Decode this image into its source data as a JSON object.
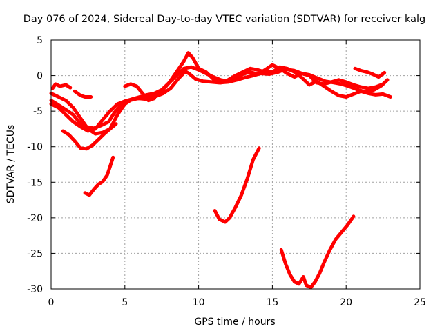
{
  "chart_data": {
    "type": "line",
    "title": "Day 076 of 2024, Sidereal Day-to-day VTEC variation (SDTVAR) for receiver kalg",
    "xlabel": "GPS time / hours",
    "ylabel": "SDTVAR / TECUs",
    "xlim": [
      0,
      25
    ],
    "ylim": [
      -30,
      5
    ],
    "xticks": [
      0,
      5,
      10,
      15,
      20,
      25
    ],
    "yticks": [
      -30,
      -25,
      -20,
      -15,
      -10,
      -5,
      0,
      5
    ],
    "grid": true,
    "series_color": "#ff0000",
    "series": [
      {
        "name": "track-1",
        "x": [
          0.0,
          0.4,
          1.0,
          1.5,
          2.0,
          2.4,
          2.9,
          3.4,
          3.9,
          4.3,
          4.8,
          5.3,
          5.9,
          6.4,
          7.0,
          7.6,
          8.1,
          8.6,
          9.1,
          9.4,
          9.8,
          10.3,
          10.9,
          11.4,
          12.0,
          12.6,
          13.1,
          13.7,
          14.2,
          14.8,
          15.4,
          15.9,
          16.5,
          17.0,
          17.5,
          18.1,
          18.6,
          19.2,
          19.7,
          20.3,
          20.8,
          21.3,
          21.9,
          22.4,
          22.8
        ],
        "y": [
          -3.5,
          -4.0,
          -4.8,
          -5.5,
          -6.8,
          -7.2,
          -7.4,
          -7.0,
          -6.5,
          -5.2,
          -4.0,
          -3.5,
          -3.2,
          -3.3,
          -3.0,
          -2.5,
          -1.8,
          -0.5,
          0.6,
          0.2,
          -0.5,
          -0.8,
          -0.9,
          -1.0,
          -0.9,
          -0.6,
          -0.3,
          0.0,
          0.3,
          0.2,
          0.5,
          0.9,
          0.7,
          0.3,
          0.1,
          -0.4,
          -0.8,
          -1.0,
          -1.2,
          -1.6,
          -2.0,
          -2.3,
          -2.0,
          -1.4,
          -0.6
        ]
      },
      {
        "name": "track-2",
        "x": [
          0.0,
          0.5,
          1.0,
          1.5,
          2.0,
          2.5,
          3.0,
          3.5,
          4.0,
          4.5,
          5.0,
          5.5,
          6.0,
          6.5,
          7.0,
          7.5,
          8.0,
          8.5,
          9.0,
          9.3,
          9.6,
          10.0,
          10.5,
          11.0,
          11.5,
          12.0,
          12.5,
          13.0,
          13.5,
          14.0,
          14.5,
          15.0,
          15.5,
          16.0,
          16.5,
          17.0,
          17.5,
          18.0,
          18.5,
          19.0,
          19.5,
          20.0,
          20.5,
          21.0,
          21.5,
          22.0,
          22.5,
          23.0
        ],
        "y": [
          -2.5,
          -3.0,
          -3.5,
          -4.5,
          -6.0,
          -7.5,
          -8.2,
          -8.0,
          -7.5,
          -5.5,
          -4.0,
          -3.3,
          -3.0,
          -2.7,
          -2.5,
          -2.0,
          -1.0,
          0.5,
          2.0,
          3.2,
          2.5,
          1.0,
          0.5,
          -0.5,
          -1.0,
          -0.6,
          0.0,
          0.5,
          1.0,
          0.8,
          0.5,
          0.5,
          1.2,
          1.0,
          0.5,
          -0.3,
          -1.3,
          -0.8,
          -1.5,
          -2.2,
          -2.8,
          -3.0,
          -2.6,
          -2.2,
          -2.5,
          -2.7,
          -2.6,
          -3.0
        ]
      },
      {
        "name": "track-3",
        "x": [
          0.0,
          0.5,
          1.0,
          1.5,
          2.0,
          2.5,
          3.0,
          3.5,
          4.0,
          4.5,
          5.0,
          5.5,
          6.0,
          6.5,
          7.0,
          7.5,
          8.0,
          8.5,
          9.0,
          9.5,
          10.0,
          10.5,
          11.0,
          11.5,
          12.0,
          12.5,
          13.0,
          13.5,
          14.0,
          14.5,
          15.0,
          15.5,
          16.0,
          16.5,
          17.0,
          17.5,
          18.0,
          18.5,
          19.0,
          19.5,
          20.0,
          20.5,
          21.0,
          21.5,
          22.0,
          22.5
        ],
        "y": [
          -4.0,
          -4.5,
          -5.5,
          -6.5,
          -7.2,
          -7.8,
          -7.5,
          -6.2,
          -5.0,
          -4.0,
          -3.6,
          -3.3,
          -3.2,
          -3.0,
          -2.8,
          -2.2,
          -1.0,
          0.0,
          1.0,
          1.2,
          0.8,
          0.3,
          -0.2,
          -0.6,
          -0.8,
          -0.5,
          0.2,
          0.5,
          0.2,
          0.8,
          1.5,
          1.0,
          0.3,
          -0.2,
          0.3,
          0.0,
          -1.0,
          -1.2,
          -0.9,
          -0.6,
          -0.9,
          -1.3,
          -1.6,
          -1.8,
          -1.6,
          -1.2
        ]
      },
      {
        "name": "track-4",
        "x": [
          0.1,
          0.3,
          0.6,
          1.0,
          1.3
        ],
        "y": [
          -1.8,
          -1.2,
          -1.5,
          -1.3,
          -1.7
        ]
      },
      {
        "name": "track-5",
        "x": [
          1.6,
          2.0,
          2.3,
          2.7
        ],
        "y": [
          -2.2,
          -2.8,
          -3.0,
          -3.0
        ]
      },
      {
        "name": "track-6",
        "x": [
          5.0,
          5.4,
          5.8,
          6.2,
          6.6,
          7.0
        ],
        "y": [
          -1.5,
          -1.2,
          -1.5,
          -2.5,
          -3.5,
          -3.2
        ]
      },
      {
        "name": "track-7",
        "x": [
          20.6,
          21.0,
          21.4,
          21.8,
          22.2,
          22.6
        ],
        "y": [
          1.0,
          0.7,
          0.5,
          0.2,
          -0.2,
          0.4
        ]
      },
      {
        "name": "track-8",
        "x": [
          0.8,
          1.2,
          1.6,
          2.0,
          2.4,
          2.8,
          3.2,
          3.6,
          4.0,
          4.4
        ],
        "y": [
          -7.8,
          -8.3,
          -9.2,
          -10.2,
          -10.3,
          -9.8,
          -9.0,
          -8.2,
          -7.5,
          -6.8
        ]
      },
      {
        "name": "track-9",
        "x": [
          2.3,
          2.6,
          2.9,
          3.2,
          3.5,
          3.8,
          4.0,
          4.2
        ],
        "y": [
          -16.5,
          -16.8,
          -16.0,
          -15.3,
          -14.9,
          -14.0,
          -12.8,
          -11.5
        ]
      },
      {
        "name": "track-10",
        "x": [
          11.1,
          11.4,
          11.8,
          12.1,
          12.5,
          12.9,
          13.3,
          13.7,
          14.1
        ],
        "y": [
          -19.0,
          -20.2,
          -20.6,
          -20.0,
          -18.5,
          -16.8,
          -14.5,
          -11.8,
          -10.2
        ]
      },
      {
        "name": "track-11",
        "x": [
          15.6,
          15.9,
          16.2,
          16.5,
          16.8,
          17.1,
          17.3,
          17.6,
          17.9,
          18.2,
          18.5,
          18.9,
          19.3,
          19.7,
          20.1,
          20.5
        ],
        "y": [
          -24.5,
          -26.5,
          -28.0,
          -29.0,
          -29.3,
          -28.3,
          -29.5,
          -29.8,
          -29.0,
          -27.8,
          -26.3,
          -24.5,
          -23.0,
          -22.0,
          -21.0,
          -19.8
        ]
      }
    ]
  }
}
